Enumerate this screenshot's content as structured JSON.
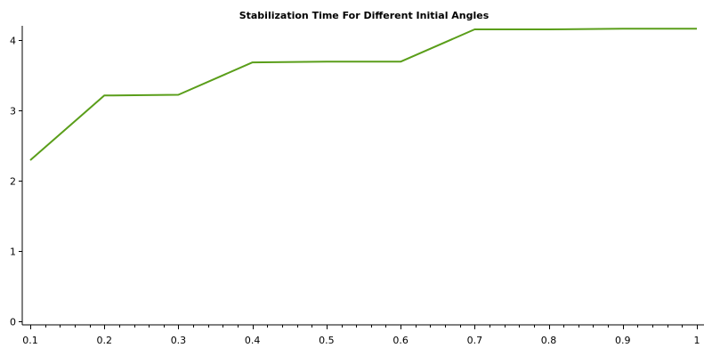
{
  "chart_data": {
    "type": "line",
    "title": "Stabilization Time For Different Initial Angles",
    "xlabel": "",
    "ylabel": "",
    "xlim": [
      0.1,
      1
    ],
    "ylim": [
      0,
      4.2
    ],
    "x_ticks": [
      "0.1",
      "0.2",
      "0.3",
      "0.4",
      "0.5",
      "0.6",
      "0.7",
      "0.8",
      "0.9",
      "1"
    ],
    "y_ticks": [
      "0",
      "1",
      "2",
      "3",
      "4"
    ],
    "grid": false,
    "legend": "none",
    "series": [
      {
        "color": "#5a9e1a",
        "x": [
          0.1,
          0.2,
          0.3,
          0.4,
          0.5,
          0.6,
          0.7,
          0.8,
          0.9,
          1.0
        ],
        "y": [
          2.29,
          3.21,
          3.22,
          3.68,
          3.69,
          3.69,
          4.15,
          4.15,
          4.16,
          4.16
        ]
      }
    ]
  }
}
